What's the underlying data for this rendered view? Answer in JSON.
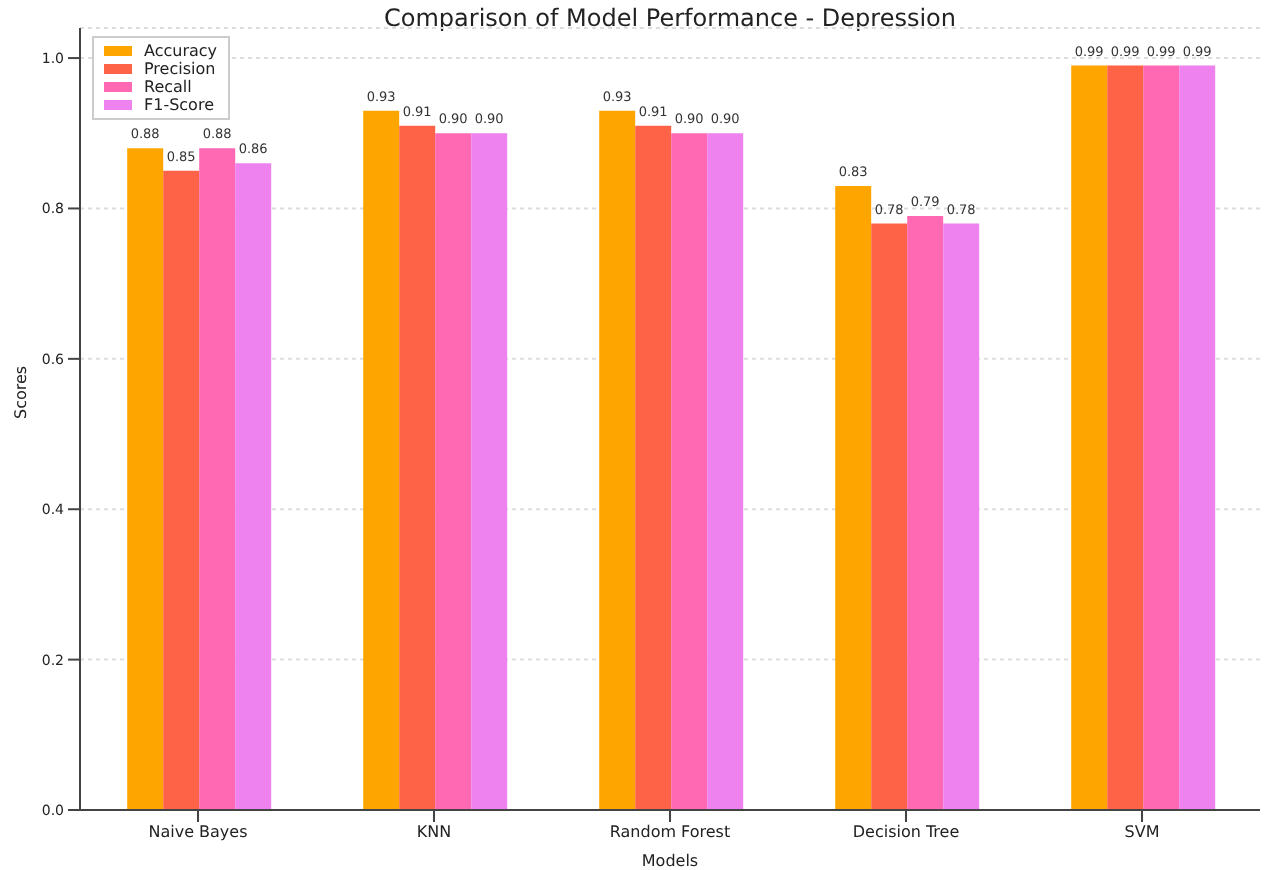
{
  "chart_data": {
    "type": "bar",
    "title": "Comparison of Model Performance - Depression",
    "xlabel": "Models",
    "ylabel": "Scores",
    "categories": [
      "Naive Bayes",
      "KNN",
      "Random Forest",
      "Decision Tree",
      "SVM"
    ],
    "series": [
      {
        "name": "Accuracy",
        "color": "#ffa500",
        "values": [
          0.88,
          0.93,
          0.93,
          0.83,
          0.99
        ],
        "value_labels": [
          "0.88",
          "0.93",
          "0.93",
          "0.83",
          "0.99"
        ]
      },
      {
        "name": "Precision",
        "color": "#ff6347",
        "values": [
          0.85,
          0.91,
          0.91,
          0.78,
          0.99
        ],
        "value_labels": [
          "0.85",
          "0.91",
          "0.91",
          "0.78",
          "0.99"
        ]
      },
      {
        "name": "Recall",
        "color": "#ff69b4",
        "values": [
          0.88,
          0.9,
          0.9,
          0.79,
          0.99
        ],
        "value_labels": [
          "0.88",
          "0.90",
          "0.90",
          "0.79",
          "0.99"
        ]
      },
      {
        "name": "F1-Score",
        "color": "#ee82ee",
        "values": [
          0.86,
          0.9,
          0.9,
          0.78,
          0.99
        ],
        "value_labels": [
          "0.86",
          "0.90",
          "0.90",
          "0.78",
          "0.99"
        ]
      }
    ],
    "ylim": [
      0,
      1.04
    ],
    "yticks": [
      {
        "value": 0,
        "label": "0.0"
      },
      {
        "value": 0.2,
        "label": "0.2"
      },
      {
        "value": 0.4,
        "label": "0.4"
      },
      {
        "value": 0.6,
        "label": "0.6"
      },
      {
        "value": 0.8,
        "label": "0.8"
      },
      {
        "value": 1,
        "label": "1.0"
      }
    ],
    "grid": "y",
    "legend": "top left"
  }
}
